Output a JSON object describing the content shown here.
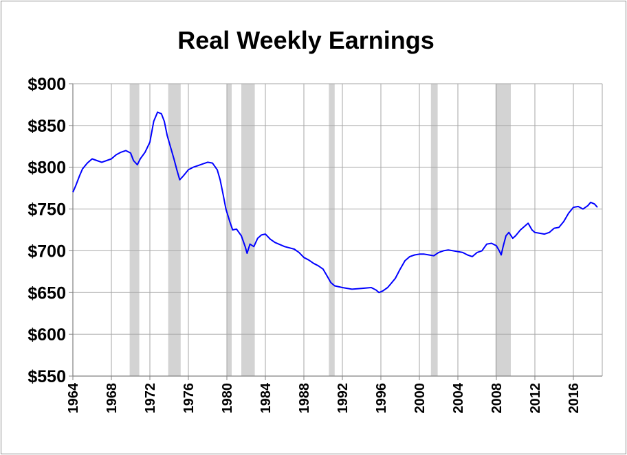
{
  "chart_data": {
    "type": "line",
    "title": "Real Weekly Earnings",
    "xlabel": "",
    "ylabel": "",
    "xlim": [
      1964,
      2019
    ],
    "ylim": [
      550,
      900
    ],
    "yticks": [
      900,
      850,
      800,
      750,
      700,
      650,
      600,
      550
    ],
    "ytick_labels": [
      "$900",
      "$850",
      "$800",
      "$750",
      "$700",
      "$650",
      "$600",
      "$550"
    ],
    "xticks": [
      1964,
      1968,
      1972,
      1976,
      1980,
      1984,
      1988,
      1992,
      1996,
      2000,
      2004,
      2008,
      2012,
      2016
    ],
    "xtick_labels": [
      "1964",
      "1968",
      "1972",
      "1976",
      "1980",
      "1984",
      "1988",
      "1992",
      "1996",
      "2000",
      "2004",
      "2008",
      "2012",
      "2016"
    ],
    "grid": true,
    "legend": "none",
    "line_color": "#0000ff",
    "recession_color": "#d3d3d3",
    "recessions": [
      [
        1969.9,
        1970.9
      ],
      [
        1973.9,
        1975.2
      ],
      [
        1980.0,
        1980.5
      ],
      [
        1981.5,
        1982.9
      ],
      [
        1990.6,
        1991.2
      ],
      [
        2001.2,
        2001.9
      ],
      [
        2007.9,
        2009.5
      ]
    ],
    "series": [
      {
        "values": [
          [
            1964.0,
            770
          ],
          [
            1964.3,
            778
          ],
          [
            1964.7,
            790
          ],
          [
            1965.0,
            798
          ],
          [
            1965.5,
            805
          ],
          [
            1966.0,
            810
          ],
          [
            1966.5,
            808
          ],
          [
            1967.0,
            806
          ],
          [
            1967.5,
            808
          ],
          [
            1968.0,
            810
          ],
          [
            1968.5,
            815
          ],
          [
            1969.0,
            818
          ],
          [
            1969.5,
            820
          ],
          [
            1970.0,
            817
          ],
          [
            1970.3,
            808
          ],
          [
            1970.7,
            803
          ],
          [
            1971.0,
            810
          ],
          [
            1971.5,
            818
          ],
          [
            1972.0,
            830
          ],
          [
            1972.4,
            855
          ],
          [
            1972.8,
            866
          ],
          [
            1973.2,
            864
          ],
          [
            1973.5,
            855
          ],
          [
            1973.8,
            838
          ],
          [
            1974.2,
            822
          ],
          [
            1974.5,
            810
          ],
          [
            1974.8,
            797
          ],
          [
            1975.1,
            785
          ],
          [
            1975.5,
            790
          ],
          [
            1976.0,
            797
          ],
          [
            1976.5,
            800
          ],
          [
            1977.0,
            802
          ],
          [
            1977.5,
            804
          ],
          [
            1978.0,
            806
          ],
          [
            1978.5,
            805
          ],
          [
            1979.0,
            797
          ],
          [
            1979.3,
            785
          ],
          [
            1979.6,
            768
          ],
          [
            1979.9,
            750
          ],
          [
            1980.3,
            735
          ],
          [
            1980.6,
            725
          ],
          [
            1981.0,
            726
          ],
          [
            1981.5,
            718
          ],
          [
            1981.9,
            705
          ],
          [
            1982.1,
            697
          ],
          [
            1982.4,
            708
          ],
          [
            1982.8,
            705
          ],
          [
            1983.2,
            715
          ],
          [
            1983.6,
            719
          ],
          [
            1984.0,
            720
          ],
          [
            1984.5,
            714
          ],
          [
            1985.0,
            710
          ],
          [
            1986.0,
            705
          ],
          [
            1987.0,
            702
          ],
          [
            1987.5,
            698
          ],
          [
            1988.0,
            692
          ],
          [
            1988.5,
            689
          ],
          [
            1989.0,
            685
          ],
          [
            1989.5,
            682
          ],
          [
            1990.0,
            678
          ],
          [
            1990.4,
            670
          ],
          [
            1990.8,
            662
          ],
          [
            1991.2,
            658
          ],
          [
            1992.0,
            656
          ],
          [
            1993.0,
            654
          ],
          [
            1994.0,
            655
          ],
          [
            1995.0,
            656
          ],
          [
            1995.5,
            653
          ],
          [
            1995.8,
            650
          ],
          [
            1996.2,
            652
          ],
          [
            1996.7,
            656
          ],
          [
            1997.0,
            660
          ],
          [
            1997.5,
            667
          ],
          [
            1998.0,
            678
          ],
          [
            1998.5,
            688
          ],
          [
            1999.0,
            693
          ],
          [
            1999.5,
            695
          ],
          [
            2000.0,
            696
          ],
          [
            2000.5,
            696
          ],
          [
            2001.0,
            695
          ],
          [
            2001.5,
            694
          ],
          [
            2002.0,
            698
          ],
          [
            2002.5,
            700
          ],
          [
            2003.0,
            701
          ],
          [
            2003.5,
            700
          ],
          [
            2004.0,
            699
          ],
          [
            2004.5,
            698
          ],
          [
            2005.0,
            695
          ],
          [
            2005.5,
            693
          ],
          [
            2006.0,
            698
          ],
          [
            2006.5,
            700
          ],
          [
            2007.0,
            708
          ],
          [
            2007.5,
            709
          ],
          [
            2008.0,
            706
          ],
          [
            2008.3,
            700
          ],
          [
            2008.5,
            695
          ],
          [
            2008.7,
            705
          ],
          [
            2009.0,
            718
          ],
          [
            2009.3,
            722
          ],
          [
            2009.7,
            715
          ],
          [
            2010.0,
            718
          ],
          [
            2010.5,
            725
          ],
          [
            2011.0,
            730
          ],
          [
            2011.3,
            733
          ],
          [
            2011.7,
            725
          ],
          [
            2012.0,
            722
          ],
          [
            2012.5,
            721
          ],
          [
            2013.0,
            720
          ],
          [
            2013.5,
            722
          ],
          [
            2014.0,
            727
          ],
          [
            2014.5,
            728
          ],
          [
            2015.0,
            735
          ],
          [
            2015.5,
            745
          ],
          [
            2016.0,
            752
          ],
          [
            2016.5,
            753
          ],
          [
            2017.0,
            750
          ],
          [
            2017.5,
            754
          ],
          [
            2017.8,
            758
          ],
          [
            2018.2,
            756
          ],
          [
            2018.5,
            752
          ]
        ]
      }
    ]
  }
}
